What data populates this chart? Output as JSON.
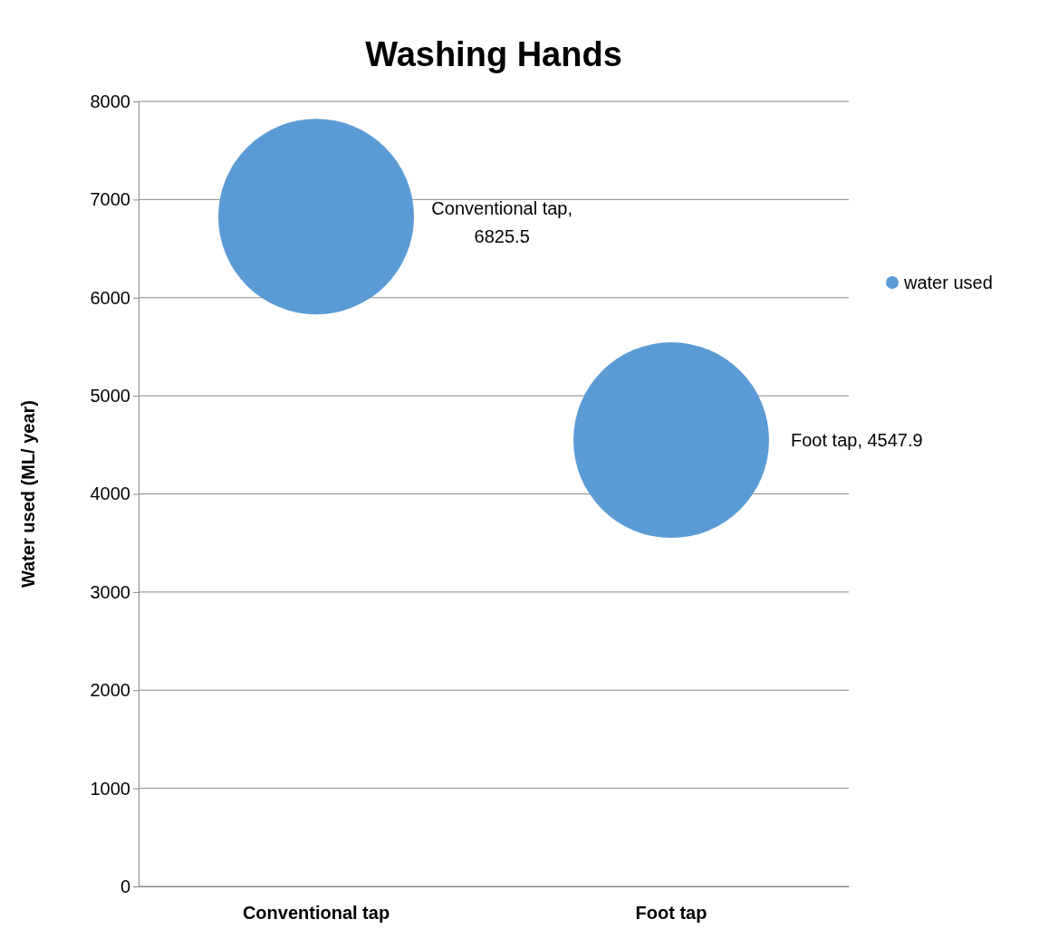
{
  "chart_data": {
    "type": "bubble",
    "title": "Washing Hands",
    "ylabel": "Water used (ML/ year)",
    "categories": [
      "Conventional tap",
      "Foot tap"
    ],
    "series": [
      {
        "name": "water used",
        "color": "#5b9bd5",
        "values": [
          6825.5,
          4547.9
        ],
        "sizes": [
          1,
          1
        ],
        "value_labels": [
          "Conventional tap, 6825.5",
          "Foot tap, 4547.9"
        ]
      }
    ],
    "ylim": [
      0,
      8000
    ],
    "yticks": [
      0,
      1000,
      2000,
      3000,
      4000,
      5000,
      6000,
      7000,
      8000
    ],
    "grid": "y",
    "legend": "right"
  }
}
